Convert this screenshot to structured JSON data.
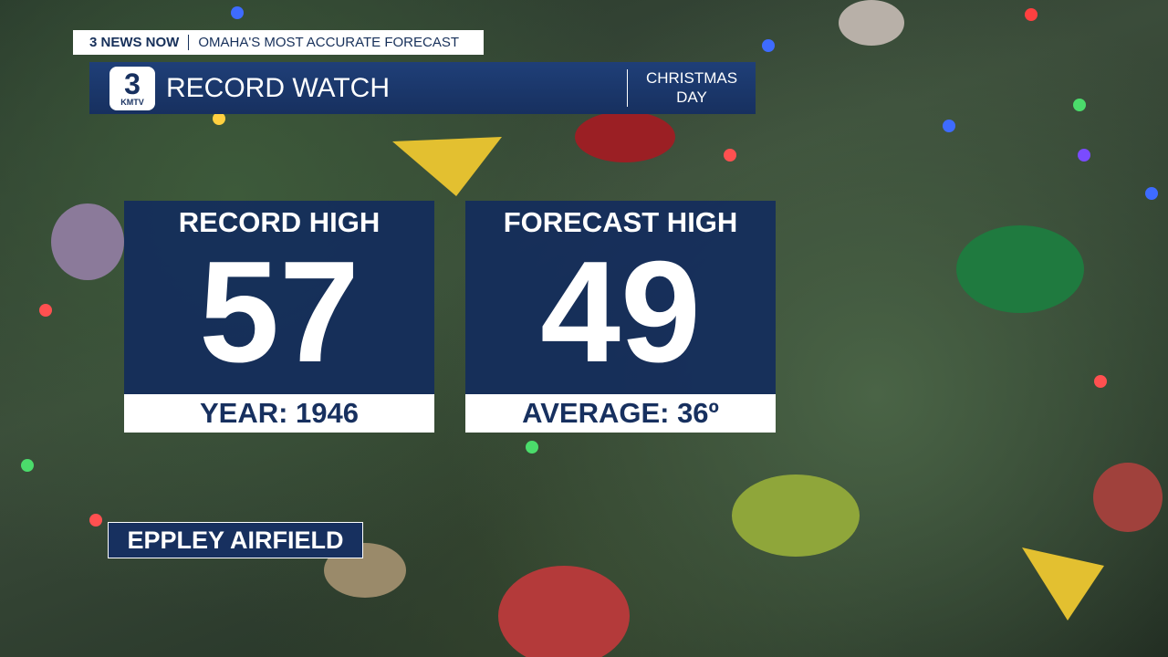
{
  "header": {
    "network": "3 NEWS NOW",
    "tagline": "OMAHA'S MOST ACCURATE FORECAST",
    "logo_number": "3",
    "logo_call": "KMTV",
    "title": "RECORD WATCH",
    "occasion": "CHRISTMAS DAY"
  },
  "panels": [
    {
      "label": "RECORD HIGH",
      "value": 57,
      "footer": "YEAR: 1946"
    },
    {
      "label": "FORECAST HIGH",
      "value": 49,
      "footer": "AVERAGE: 36º"
    }
  ],
  "location": "EPPLEY AIRFIELD"
}
